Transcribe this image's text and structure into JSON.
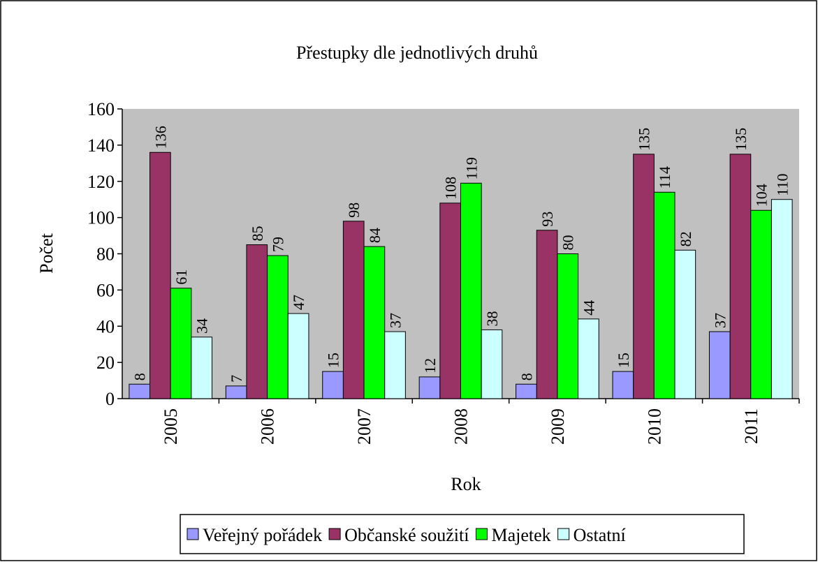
{
  "chart_data": {
    "type": "bar",
    "title": "Přestupky dle jednotlivých druhů",
    "x_label": "Rok",
    "y_label": "Počet",
    "categories": [
      "2005",
      "2006",
      "2007",
      "2008",
      "2009",
      "2010",
      "2011"
    ],
    "series": [
      {
        "name": "Veřejný pořádek",
        "color": "#9999ff",
        "values": [
          8,
          7,
          15,
          12,
          8,
          15,
          37
        ]
      },
      {
        "name": "Občanské soužití",
        "color": "#993366",
        "values": [
          136,
          85,
          98,
          108,
          93,
          135,
          135
        ]
      },
      {
        "name": "Majetek",
        "color": "#00ff00",
        "values": [
          61,
          79,
          84,
          119,
          80,
          114,
          104
        ]
      },
      {
        "name": "Ostatní",
        "color": "#ccffff",
        "values": [
          34,
          47,
          37,
          38,
          44,
          82,
          110
        ]
      }
    ],
    "ylim": [
      0,
      160
    ],
    "yticks": [
      0,
      20,
      40,
      60,
      80,
      100,
      120,
      140,
      160
    ],
    "plot_background": "#c0c0c0",
    "legend": "bottom"
  }
}
